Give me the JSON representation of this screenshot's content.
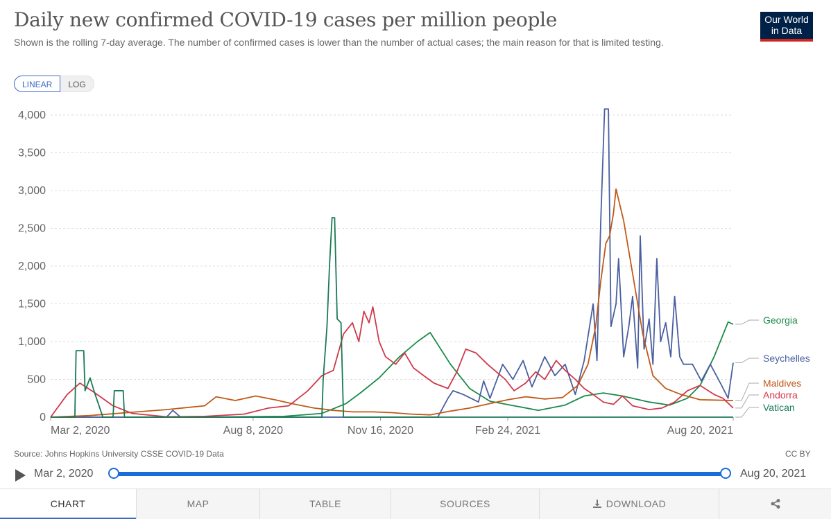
{
  "header": {
    "title": "Daily new confirmed COVID-19 cases per million people",
    "subtitle": "Shown is the rolling 7-day average. The number of confirmed cases is lower than the number of actual cases; the main reason for that is limited testing.",
    "logo_line1": "Our World",
    "logo_line2": "in Data"
  },
  "scale_toggle": {
    "linear": "LINEAR",
    "log": "LOG"
  },
  "footer": {
    "source": "Source: Johns Hopkins University CSSE COVID-19 Data",
    "license": "CC BY"
  },
  "timeline": {
    "start": "Mar 2, 2020",
    "end": "Aug 20, 2021"
  },
  "tabs": [
    {
      "label": "CHART",
      "icon": ""
    },
    {
      "label": "MAP",
      "icon": ""
    },
    {
      "label": "TABLE",
      "icon": ""
    },
    {
      "label": "SOURCES",
      "icon": ""
    },
    {
      "label": "DOWNLOAD",
      "icon": "download-icon"
    },
    {
      "label": "",
      "icon": "share-icon"
    }
  ],
  "chart_data": {
    "type": "line",
    "title": "Daily new confirmed COVID-19 cases per million people",
    "ylim": [
      0,
      4000
    ],
    "y_ticks": [
      0,
      500,
      1000,
      1500,
      2000,
      2500,
      3000,
      3500,
      4000
    ],
    "y_tick_labels": [
      "0",
      "500",
      "1,000",
      "1,500",
      "2,000",
      "2,500",
      "3,000",
      "3,500",
      "4,000"
    ],
    "x_range": [
      "2020-03-02",
      "2021-08-20"
    ],
    "x_ticks": [
      "2020-03-02",
      "2020-08-08",
      "2020-11-16",
      "2021-02-24",
      "2021-08-20"
    ],
    "x_tick_labels": [
      "Mar 2, 2020",
      "Aug 8, 2020",
      "Nov 16, 2020",
      "Feb 24, 2021",
      "Aug 20, 2021"
    ],
    "grid": true,
    "legend": "right, labels at line ends",
    "series": [
      {
        "name": "Georgia",
        "color": "#1a8a4a",
        "points": [
          [
            "2020-03-02",
            0
          ],
          [
            "2020-07-01",
            0
          ],
          [
            "2020-09-01",
            10
          ],
          [
            "2020-10-01",
            50
          ],
          [
            "2020-10-20",
            180
          ],
          [
            "2020-11-01",
            330
          ],
          [
            "2020-11-15",
            520
          ],
          [
            "2020-12-01",
            800
          ],
          [
            "2020-12-15",
            1000
          ],
          [
            "2020-12-25",
            1120
          ],
          [
            "2021-01-10",
            700
          ],
          [
            "2021-01-25",
            380
          ],
          [
            "2021-02-10",
            210
          ],
          [
            "2021-03-01",
            150
          ],
          [
            "2021-03-20",
            90
          ],
          [
            "2021-04-10",
            160
          ],
          [
            "2021-04-25",
            280
          ],
          [
            "2021-05-10",
            320
          ],
          [
            "2021-05-25",
            280
          ],
          [
            "2021-06-15",
            200
          ],
          [
            "2021-07-01",
            160
          ],
          [
            "2021-07-15",
            250
          ],
          [
            "2021-07-25",
            420
          ],
          [
            "2021-08-05",
            800
          ],
          [
            "2021-08-16",
            1260
          ],
          [
            "2021-08-20",
            1230
          ]
        ]
      },
      {
        "name": "Seychelles",
        "color": "#4a5fa0",
        "points": [
          [
            "2020-03-02",
            0
          ],
          [
            "2020-06-01",
            0
          ],
          [
            "2020-06-06",
            90
          ],
          [
            "2020-06-12",
            0
          ],
          [
            "2020-12-31",
            0
          ],
          [
            "2021-01-08",
            250
          ],
          [
            "2021-01-12",
            350
          ],
          [
            "2021-01-20",
            300
          ],
          [
            "2021-02-01",
            200
          ],
          [
            "2021-02-05",
            480
          ],
          [
            "2021-02-10",
            250
          ],
          [
            "2021-02-20",
            700
          ],
          [
            "2021-02-28",
            500
          ],
          [
            "2021-03-08",
            750
          ],
          [
            "2021-03-15",
            400
          ],
          [
            "2021-03-25",
            800
          ],
          [
            "2021-04-02",
            550
          ],
          [
            "2021-04-10",
            700
          ],
          [
            "2021-04-18",
            300
          ],
          [
            "2021-04-25",
            750
          ],
          [
            "2021-05-02",
            1500
          ],
          [
            "2021-05-05",
            750
          ],
          [
            "2021-05-08",
            2600
          ],
          [
            "2021-05-11",
            4080
          ],
          [
            "2021-05-14",
            4080
          ],
          [
            "2021-05-16",
            1200
          ],
          [
            "2021-05-20",
            1500
          ],
          [
            "2021-05-22",
            2100
          ],
          [
            "2021-05-26",
            800
          ],
          [
            "2021-05-30",
            1200
          ],
          [
            "2021-06-02",
            1600
          ],
          [
            "2021-06-06",
            650
          ],
          [
            "2021-06-08",
            2400
          ],
          [
            "2021-06-11",
            900
          ],
          [
            "2021-06-15",
            1300
          ],
          [
            "2021-06-18",
            700
          ],
          [
            "2021-06-21",
            2100
          ],
          [
            "2021-06-24",
            1000
          ],
          [
            "2021-06-28",
            1250
          ],
          [
            "2021-07-02",
            800
          ],
          [
            "2021-07-05",
            1600
          ],
          [
            "2021-07-09",
            800
          ],
          [
            "2021-07-12",
            700
          ],
          [
            "2021-07-19",
            700
          ],
          [
            "2021-07-26",
            480
          ],
          [
            "2021-08-02",
            700
          ],
          [
            "2021-08-10",
            450
          ],
          [
            "2021-08-16",
            250
          ],
          [
            "2021-08-20",
            720
          ]
        ]
      },
      {
        "name": "Maldives",
        "color": "#c05917",
        "points": [
          [
            "2020-03-02",
            0
          ],
          [
            "2020-04-01",
            20
          ],
          [
            "2020-05-01",
            60
          ],
          [
            "2020-06-01",
            100
          ],
          [
            "2020-07-01",
            150
          ],
          [
            "2020-07-10",
            270
          ],
          [
            "2020-07-25",
            220
          ],
          [
            "2020-08-10",
            280
          ],
          [
            "2020-08-25",
            230
          ],
          [
            "2020-09-10",
            170
          ],
          [
            "2020-09-25",
            120
          ],
          [
            "2020-10-10",
            90
          ],
          [
            "2020-10-25",
            70
          ],
          [
            "2020-11-10",
            70
          ],
          [
            "2020-11-25",
            60
          ],
          [
            "2020-12-10",
            40
          ],
          [
            "2020-12-25",
            30
          ],
          [
            "2021-01-10",
            80
          ],
          [
            "2021-01-25",
            120
          ],
          [
            "2021-02-10",
            180
          ],
          [
            "2021-02-24",
            230
          ],
          [
            "2021-03-10",
            270
          ],
          [
            "2021-03-25",
            240
          ],
          [
            "2021-04-08",
            260
          ],
          [
            "2021-04-20",
            420
          ],
          [
            "2021-04-28",
            700
          ],
          [
            "2021-05-04",
            1200
          ],
          [
            "2021-05-08",
            1800
          ],
          [
            "2021-05-12",
            2300
          ],
          [
            "2021-05-15",
            2400
          ],
          [
            "2021-05-18",
            2700
          ],
          [
            "2021-05-20",
            3020
          ],
          [
            "2021-05-26",
            2600
          ],
          [
            "2021-06-02",
            1900
          ],
          [
            "2021-06-10",
            1100
          ],
          [
            "2021-06-18",
            550
          ],
          [
            "2021-06-28",
            380
          ],
          [
            "2021-07-10",
            300
          ],
          [
            "2021-07-25",
            230
          ],
          [
            "2021-08-20",
            220
          ]
        ]
      },
      {
        "name": "Andorra",
        "color": "#d03849",
        "points": [
          [
            "2020-03-02",
            0
          ],
          [
            "2020-03-15",
            300
          ],
          [
            "2020-03-25",
            450
          ],
          [
            "2020-04-05",
            330
          ],
          [
            "2020-04-20",
            150
          ],
          [
            "2020-05-05",
            50
          ],
          [
            "2020-06-01",
            5
          ],
          [
            "2020-07-01",
            10
          ],
          [
            "2020-08-01",
            40
          ],
          [
            "2020-08-20",
            120
          ],
          [
            "2020-09-05",
            150
          ],
          [
            "2020-09-20",
            350
          ],
          [
            "2020-10-01",
            550
          ],
          [
            "2020-10-10",
            620
          ],
          [
            "2020-10-18",
            1100
          ],
          [
            "2020-10-25",
            1250
          ],
          [
            "2020-10-30",
            1000
          ],
          [
            "2020-11-03",
            1400
          ],
          [
            "2020-11-07",
            1250
          ],
          [
            "2020-11-10",
            1460
          ],
          [
            "2020-11-15",
            1000
          ],
          [
            "2020-11-20",
            800
          ],
          [
            "2020-11-28",
            700
          ],
          [
            "2020-12-05",
            850
          ],
          [
            "2020-12-12",
            650
          ],
          [
            "2020-12-20",
            550
          ],
          [
            "2020-12-28",
            450
          ],
          [
            "2021-01-08",
            380
          ],
          [
            "2021-01-15",
            600
          ],
          [
            "2021-01-22",
            900
          ],
          [
            "2021-01-30",
            850
          ],
          [
            "2021-02-08",
            700
          ],
          [
            "2021-02-15",
            600
          ],
          [
            "2021-02-22",
            500
          ],
          [
            "2021-03-01",
            350
          ],
          [
            "2021-03-10",
            450
          ],
          [
            "2021-03-18",
            600
          ],
          [
            "2021-03-25",
            500
          ],
          [
            "2021-04-03",
            750
          ],
          [
            "2021-04-10",
            620
          ],
          [
            "2021-04-18",
            500
          ],
          [
            "2021-04-25",
            380
          ],
          [
            "2021-05-02",
            300
          ],
          [
            "2021-05-10",
            200
          ],
          [
            "2021-05-18",
            170
          ],
          [
            "2021-05-25",
            280
          ],
          [
            "2021-06-02",
            150
          ],
          [
            "2021-06-15",
            100
          ],
          [
            "2021-06-25",
            120
          ],
          [
            "2021-07-05",
            200
          ],
          [
            "2021-07-15",
            350
          ],
          [
            "2021-07-25",
            420
          ],
          [
            "2021-08-05",
            300
          ],
          [
            "2021-08-12",
            250
          ],
          [
            "2021-08-20",
            120
          ]
        ]
      },
      {
        "name": "Vatican",
        "color": "#1a7a54",
        "points": [
          [
            "2020-03-02",
            0
          ],
          [
            "2020-03-21",
            0
          ],
          [
            "2020-03-22",
            880
          ],
          [
            "2020-03-28",
            880
          ],
          [
            "2020-03-29",
            350
          ],
          [
            "2020-04-02",
            520
          ],
          [
            "2020-04-05",
            350
          ],
          [
            "2020-04-12",
            0
          ],
          [
            "2020-04-20",
            0
          ],
          [
            "2020-04-21",
            350
          ],
          [
            "2020-04-28",
            350
          ],
          [
            "2020-04-29",
            0
          ],
          [
            "2020-10-01",
            0
          ],
          [
            "2020-10-02",
            500
          ],
          [
            "2020-10-05",
            1200
          ],
          [
            "2020-10-07",
            2000
          ],
          [
            "2020-10-09",
            2640
          ],
          [
            "2020-10-11",
            2640
          ],
          [
            "2020-10-13",
            1300
          ],
          [
            "2020-10-16",
            1250
          ],
          [
            "2020-10-18",
            0
          ],
          [
            "2021-08-20",
            0
          ]
        ]
      }
    ]
  }
}
